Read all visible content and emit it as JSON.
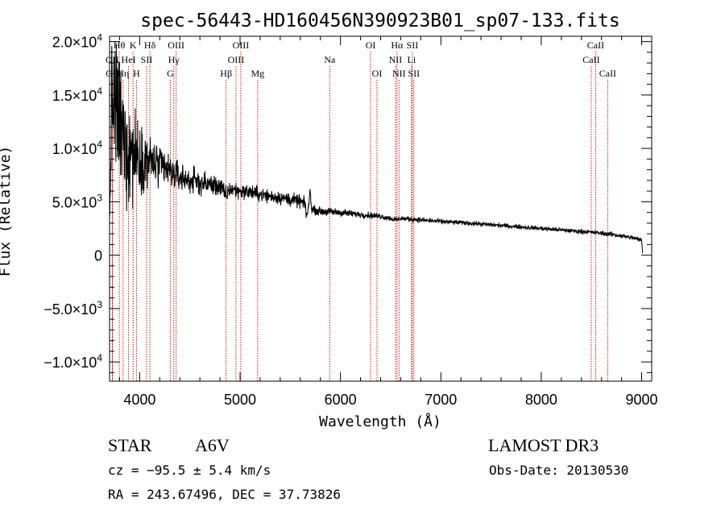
{
  "chart_data": {
    "type": "line",
    "title": "spec-56443-HD160456N390923B01_sp07-133.fits",
    "xlabel": "Wavelength (Å)",
    "ylabel": "Flux (Relative)",
    "xlim": [
      3700,
      9100
    ],
    "ylim": [
      -11800,
      20500
    ],
    "x_ticks": [
      4000,
      5000,
      6000,
      7000,
      8000,
      9000
    ],
    "x_tick_labels": [
      "4000",
      "5000",
      "6000",
      "7000",
      "8000",
      "9000"
    ],
    "y_ticks": [
      {
        "value": 20000,
        "mant": "2.0×10",
        "exp": "4"
      },
      {
        "value": 15000,
        "mant": "1.5×10",
        "exp": "4"
      },
      {
        "value": 10000,
        "mant": "1.0×10",
        "exp": "4"
      },
      {
        "value": 5000,
        "mant": "5.0×10",
        "exp": "3"
      },
      {
        "value": 0,
        "mant": "0",
        "exp": ""
      },
      {
        "value": -5000,
        "mant": "−5.0×10",
        "exp": "3"
      },
      {
        "value": -10000,
        "mant": "−1.0×10",
        "exp": "4"
      }
    ],
    "spectrum_anchors": [
      [
        3700,
        2000
      ],
      [
        3720,
        14500
      ],
      [
        3760,
        13500
      ],
      [
        3800,
        12000
      ],
      [
        3850,
        10500
      ],
      [
        3900,
        10000
      ],
      [
        3950,
        9500
      ],
      [
        4000,
        9200
      ],
      [
        4100,
        8800
      ],
      [
        4200,
        8300
      ],
      [
        4300,
        7800
      ],
      [
        4400,
        7300
      ],
      [
        4500,
        7000
      ],
      [
        4600,
        6800
      ],
      [
        4700,
        6600
      ],
      [
        4800,
        6400
      ],
      [
        4861,
        5600
      ],
      [
        4900,
        6200
      ],
      [
        5000,
        6000
      ],
      [
        5100,
        5900
      ],
      [
        5200,
        5700
      ],
      [
        5300,
        5500
      ],
      [
        5400,
        5400
      ],
      [
        5500,
        5200
      ],
      [
        5600,
        5000
      ],
      [
        5650,
        4800
      ],
      [
        5660,
        3600
      ],
      [
        5680,
        4300
      ],
      [
        5700,
        6300
      ],
      [
        5710,
        4300
      ],
      [
        5800,
        4100
      ],
      [
        6000,
        4000
      ],
      [
        6200,
        3800
      ],
      [
        6400,
        3650
      ],
      [
        6563,
        3300
      ],
      [
        6600,
        3450
      ],
      [
        6800,
        3300
      ],
      [
        7000,
        3150
      ],
      [
        7200,
        3050
      ],
      [
        7500,
        2850
      ],
      [
        7800,
        2650
      ],
      [
        8000,
        2500
      ],
      [
        8200,
        2350
      ],
      [
        8500,
        2150
      ],
      [
        8700,
        1950
      ],
      [
        8900,
        1650
      ],
      [
        9000,
        1400
      ],
      [
        9010,
        200
      ]
    ],
    "noise_profile": [
      [
        3700,
        3000
      ],
      [
        3760,
        7000
      ],
      [
        3900,
        5500
      ],
      [
        4000,
        3000
      ],
      [
        4200,
        2000
      ],
      [
        4400,
        1300
      ],
      [
        5000,
        700
      ],
      [
        5600,
        600
      ],
      [
        5700,
        400
      ],
      [
        6500,
        250
      ],
      [
        7500,
        200
      ],
      [
        9000,
        220
      ]
    ],
    "spectral_lines": [
      {
        "label": "Hθ",
        "wavelength": 3797,
        "row": 0
      },
      {
        "label": "K",
        "wavelength": 3934,
        "row": 0
      },
      {
        "label": "Hδ",
        "wavelength": 4102,
        "row": 0
      },
      {
        "label": "OIII",
        "wavelength": 4363,
        "row": 0
      },
      {
        "label": "OIII",
        "wavelength": 5007,
        "row": 0
      },
      {
        "label": "OI",
        "wavelength": 6300,
        "row": 0
      },
      {
        "label": "Hα",
        "wavelength": 6563,
        "row": 0
      },
      {
        "label": "SII",
        "wavelength": 6716,
        "row": 0
      },
      {
        "label": "CaII",
        "wavelength": 8542,
        "row": 0
      },
      {
        "label": "OII",
        "wavelength": 3727,
        "row": 1
      },
      {
        "label": "HeI",
        "wavelength": 3889,
        "row": 1
      },
      {
        "label": "SII",
        "wavelength": 4069,
        "row": 1
      },
      {
        "label": "Hγ",
        "wavelength": 4340,
        "row": 1
      },
      {
        "label": "OIII",
        "wavelength": 4959,
        "row": 1
      },
      {
        "label": "Na",
        "wavelength": 5893,
        "row": 1
      },
      {
        "label": "NII",
        "wavelength": 6548,
        "row": 1
      },
      {
        "label": "Li",
        "wavelength": 6708,
        "row": 1
      },
      {
        "label": "CaII",
        "wavelength": 8498,
        "row": 1
      },
      {
        "label": "OII",
        "wavelength": 3729,
        "row": 2
      },
      {
        "label": "Hη",
        "wavelength": 3835,
        "row": 2
      },
      {
        "label": "H",
        "wavelength": 3968,
        "row": 2
      },
      {
        "label": "G",
        "wavelength": 4305,
        "row": 2
      },
      {
        "label": "Hβ",
        "wavelength": 4861,
        "row": 2
      },
      {
        "label": "Mg",
        "wavelength": 5175,
        "row": 2
      },
      {
        "label": "OI",
        "wavelength": 6364,
        "row": 2
      },
      {
        "label": "NII",
        "wavelength": 6583,
        "row": 2
      },
      {
        "label": "SII",
        "wavelength": 6731,
        "row": 2
      },
      {
        "label": "CaII",
        "wavelength": 8662,
        "row": 2
      }
    ]
  },
  "info": {
    "object_class": "STAR",
    "subclass": "A6V",
    "survey": "LAMOST DR3",
    "redshift": "cz = −95.5 ± 5.4 km/s",
    "obs_date": "Obs-Date: 20130530",
    "coords": "RA = 243.67496, DEC =  37.73826"
  },
  "colors": {
    "line_marker": "#cc0000",
    "spectrum": "#000000",
    "axis": "#000000"
  }
}
